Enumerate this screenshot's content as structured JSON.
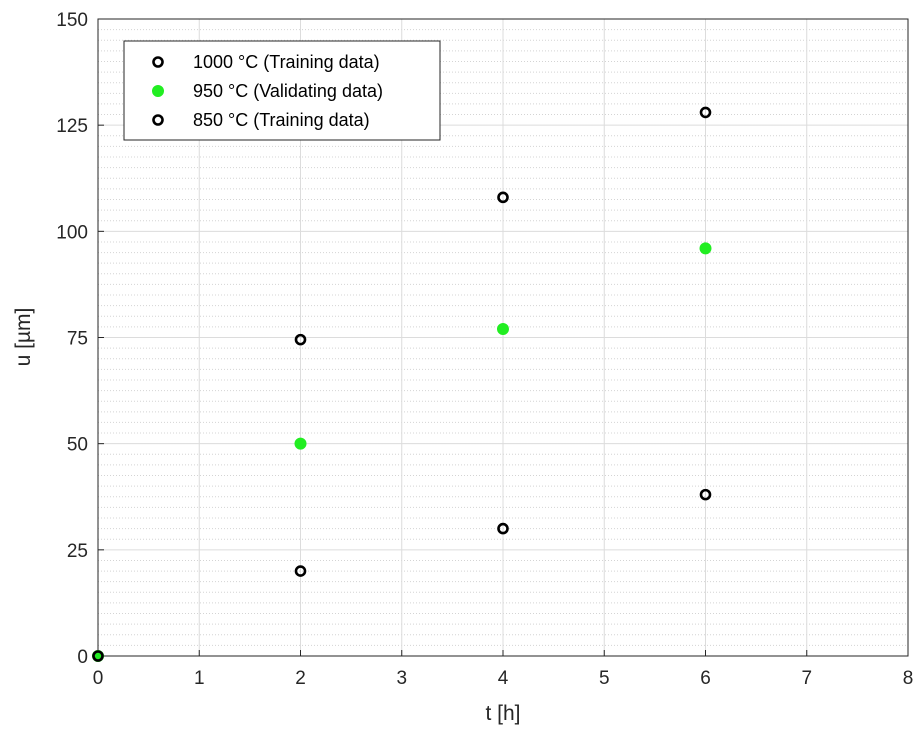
{
  "chart_data": {
    "type": "scatter",
    "xlabel": "t [h]",
    "ylabel": "u [µm]",
    "xlim": [
      0,
      8
    ],
    "ylim": [
      0,
      150
    ],
    "xticks": [
      "0",
      "1",
      "2",
      "3",
      "4",
      "5",
      "6",
      "7",
      "8"
    ],
    "yticks": [
      "0",
      "25",
      "50",
      "75",
      "100",
      "125",
      "150"
    ],
    "grid": true,
    "minor_grid_y": true,
    "legend_position": "top-left",
    "series": [
      {
        "name": "1000 °C (Training data)",
        "color": "#000000",
        "marker": "open-circle",
        "x": [
          0,
          2,
          4,
          6
        ],
        "y": [
          0,
          74.5,
          108,
          128
        ]
      },
      {
        "name": "950 °C (Validating data)",
        "color": "#22ee22",
        "marker": "filled-circle",
        "x": [
          0,
          2,
          4,
          6
        ],
        "y": [
          0,
          50,
          77,
          96
        ]
      },
      {
        "name": "850 °C (Training data)",
        "color": "#000000",
        "marker": "open-circle",
        "x": [
          0,
          2,
          4,
          6
        ],
        "y": [
          0,
          20,
          30,
          38
        ]
      }
    ]
  }
}
